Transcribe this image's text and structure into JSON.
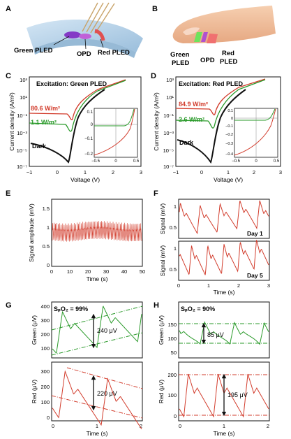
{
  "panels": {
    "A": {
      "letter": "A",
      "labels": {
        "green": "Green PLED",
        "opd": "OPD",
        "red": "Red PLED"
      }
    },
    "B": {
      "letter": "B",
      "labels": {
        "green": "Green\nPLED",
        "opd": "OPD",
        "red": "Red\nPLED"
      }
    },
    "C": {
      "letter": "C"
    },
    "D": {
      "letter": "D"
    },
    "E": {
      "letter": "E"
    },
    "F": {
      "letter": "F"
    },
    "G": {
      "letter": "G"
    },
    "H": {
      "letter": "H"
    }
  },
  "colors": {
    "green": "#2a9a2a",
    "red": "#d23c2c",
    "dark": "#111111",
    "limb": "#2a9a2a"
  },
  "chart_data": [
    {
      "id": "C",
      "type": "line",
      "title": "Excitation: Green PLED",
      "xlabel": "Voltage (V)",
      "ylabel": "Current density (A/m²)",
      "xlim": [
        -1,
        3
      ],
      "xticks": [
        "−1",
        "0",
        "1",
        "2",
        "3"
      ],
      "ylim_log": [
        -7,
        3
      ],
      "yticks": [
        "10³",
        "10¹",
        "10⁻¹",
        "10⁻³",
        "10⁻⁵",
        "10⁻⁷"
      ],
      "annotations": [
        {
          "text": "80.6 W/m²",
          "color": "red"
        },
        {
          "text": "1.1 W/m²",
          "color": "green"
        },
        {
          "text": "Dark",
          "color": "dark"
        }
      ],
      "inset": {
        "xlim": [
          -0.5,
          0.5
        ],
        "ylim": [
          -0.2,
          0.1
        ],
        "xticks": [
          "−0.5",
          "0",
          "0.5"
        ],
        "yticks": [
          "0.1",
          "0",
          "−0.1",
          "−0.2"
        ]
      }
    },
    {
      "id": "D",
      "type": "line",
      "title": "Excitation: Red PLED",
      "xlabel": "Voltage (V)",
      "ylabel": "Current density (A/m²)",
      "xlim": [
        -1,
        3
      ],
      "xticks": [
        "−1",
        "0",
        "1",
        "2",
        "3"
      ],
      "yticks": [
        "10³",
        "10¹",
        "10⁻¹",
        "10⁻³",
        "10⁻⁵",
        "10⁻⁷"
      ],
      "annotations": [
        {
          "text": "84.9 W/m²",
          "color": "red"
        },
        {
          "text": "2.6 W/m²",
          "color": "green"
        },
        {
          "text": "Dark",
          "color": "dark"
        }
      ],
      "inset": {
        "xlim": [
          -0.5,
          0.5
        ],
        "ylim": [
          -0.4,
          0.1
        ],
        "xticks": [
          "−0.5",
          "0",
          "0.5"
        ],
        "yticks": [
          "0.1",
          "0",
          "−0.1",
          "−0.2",
          "−0.3",
          "−0.4"
        ]
      }
    },
    {
      "id": "E",
      "type": "line",
      "xlabel": "Time (s)",
      "ylabel": "Signal amplitude (mV)",
      "xlim": [
        0,
        50
      ],
      "xticks": [
        "0",
        "10",
        "20",
        "30",
        "40",
        "50"
      ],
      "ylim": [
        0,
        1.5
      ],
      "yticks": [
        "1.5",
        "1",
        "0.5",
        "0"
      ]
    },
    {
      "id": "F",
      "type": "line",
      "xlabel": "Time (s)",
      "ylabel": "Signal (mV)",
      "xlim": [
        0,
        3
      ],
      "xticks": [
        "0",
        "1",
        "2",
        "3"
      ],
      "panels": [
        {
          "label": "Day 1",
          "yticks": [
            "1",
            "0.5"
          ]
        },
        {
          "label": "Day 5",
          "yticks": [
            "1",
            "0.5"
          ]
        }
      ]
    },
    {
      "id": "G",
      "type": "line",
      "title": "SₚO₂ = 99%",
      "xlabel": "Time (s)",
      "xlim": [
        0,
        2
      ],
      "xticks": [
        "0",
        "1",
        "2"
      ],
      "top": {
        "ylabel": "Green (μV)",
        "yticks": [
          "400",
          "300",
          "200",
          "100"
        ],
        "amplitude": "240 μV"
      },
      "bottom": {
        "ylabel": "Red (μV)",
        "yticks": [
          "300",
          "200",
          "100",
          "0"
        ],
        "amplitude": "220 μV"
      }
    },
    {
      "id": "H",
      "type": "line",
      "title": "SₚO₂ = 90%",
      "xlabel": "Time (s)",
      "xlim": [
        0,
        2
      ],
      "xticks": [
        "0",
        "1",
        "2"
      ],
      "top": {
        "ylabel": "Green (μV)",
        "yticks": [
          "150",
          "100",
          "50"
        ],
        "amplitude": "85 μV"
      },
      "bottom": {
        "ylabel": "Red (μV)",
        "yticks": [
          "200",
          "100",
          "0"
        ],
        "amplitude": "195 μV"
      }
    }
  ]
}
